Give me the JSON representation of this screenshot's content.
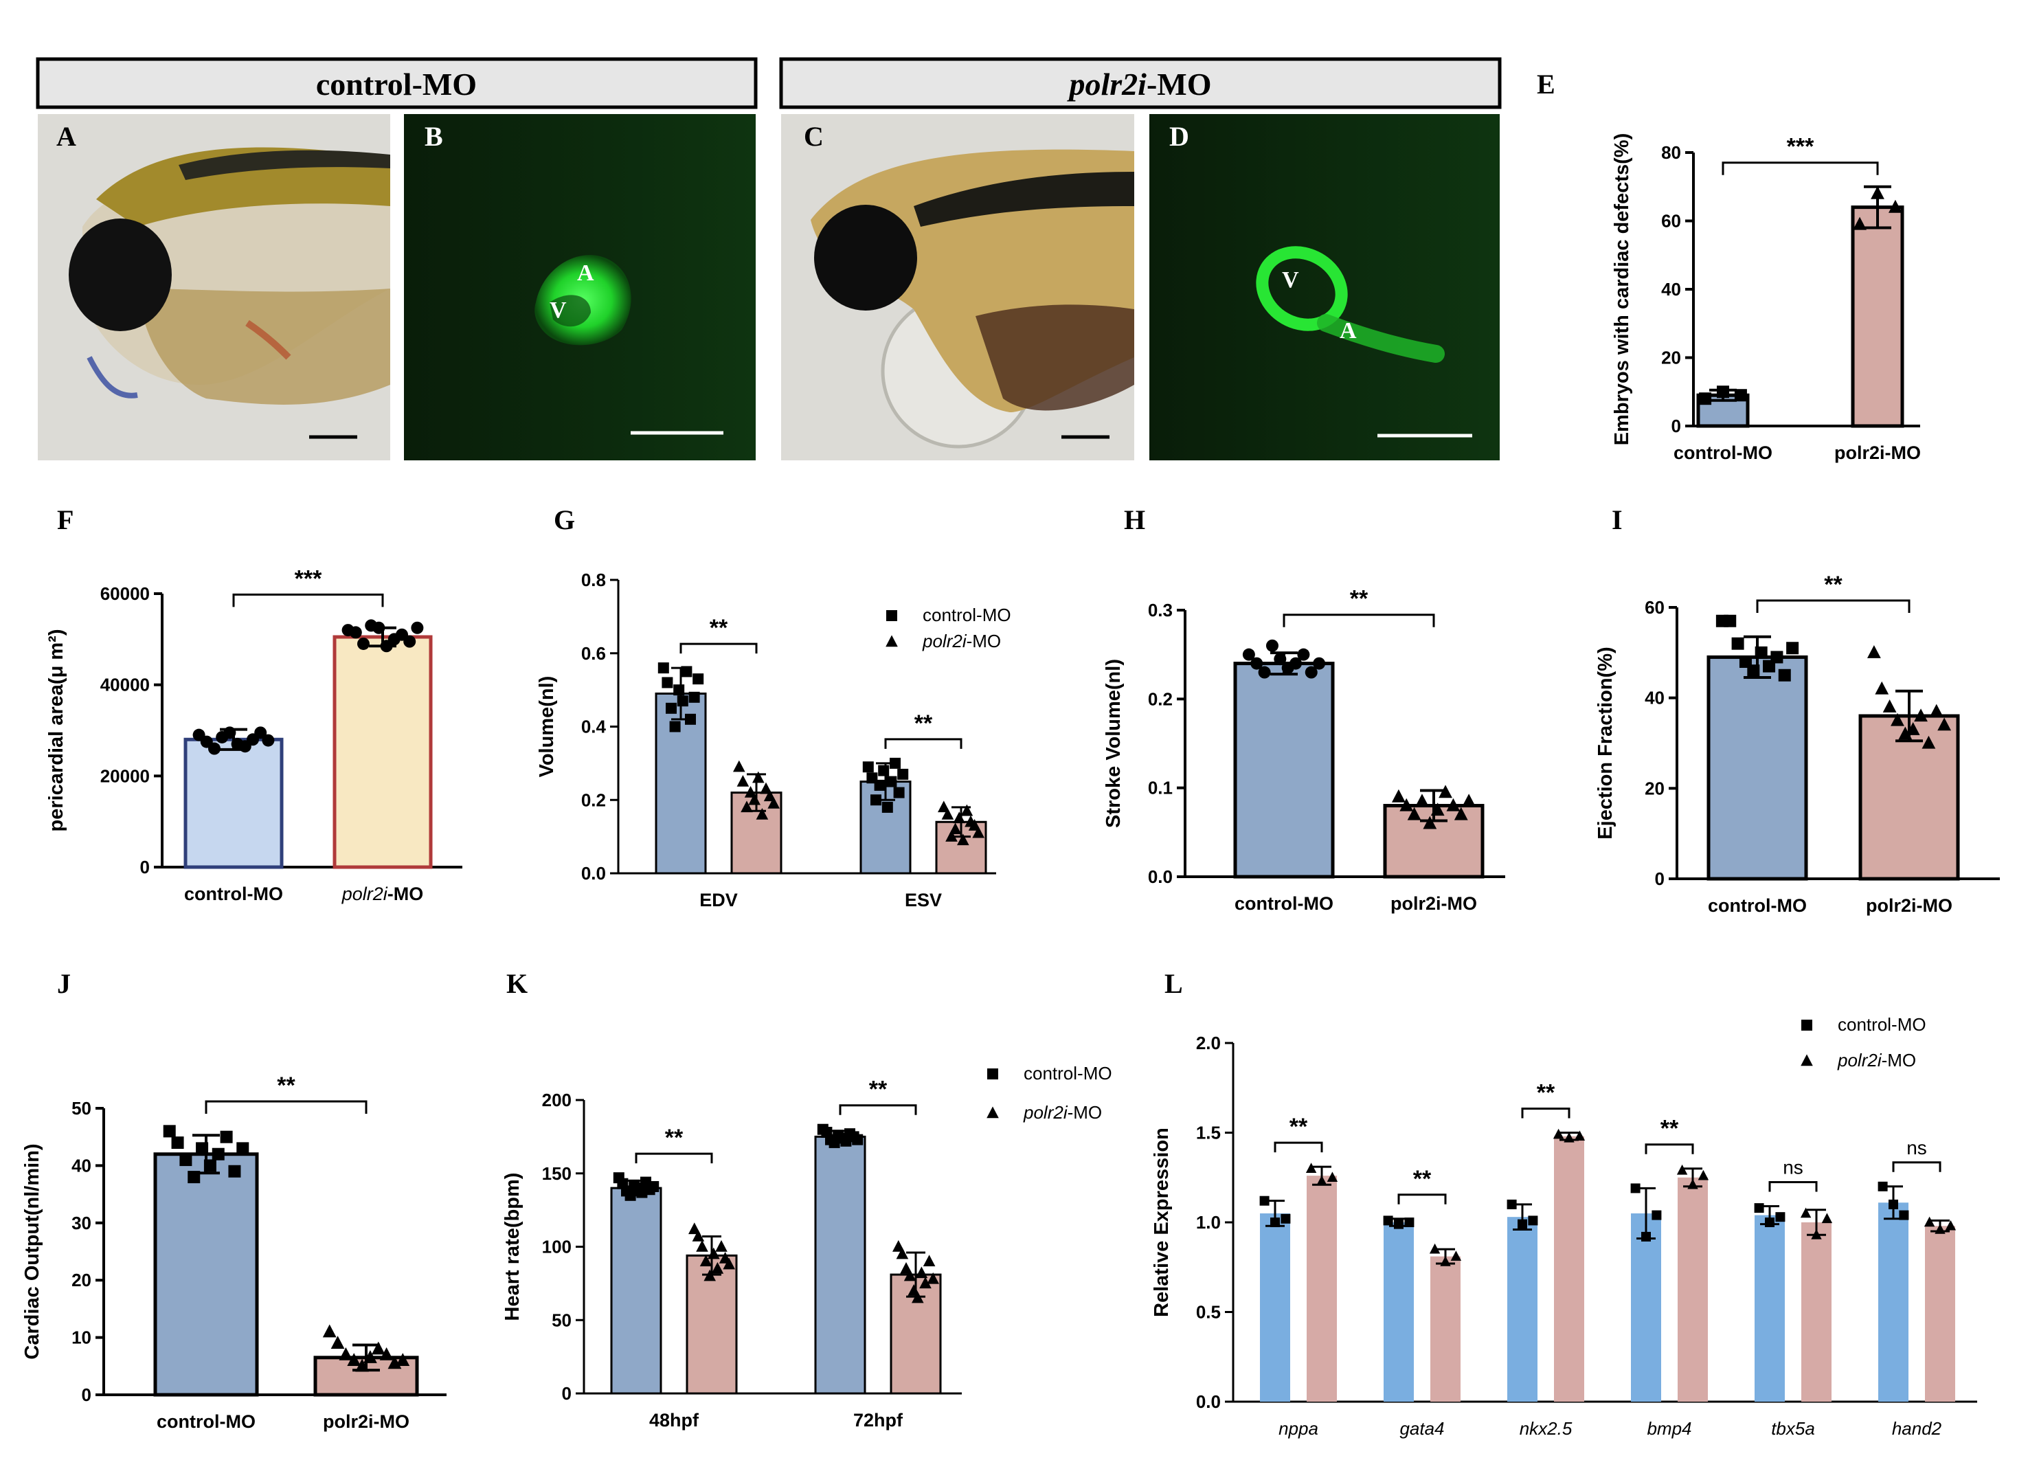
{
  "figure": {
    "headers": [
      "control-MO",
      "polr2i-MO"
    ],
    "header_italic_part": "polr2i",
    "header_plain_part": "-MO",
    "panel_letters": [
      "A",
      "B",
      "C",
      "D",
      "E",
      "F",
      "G",
      "H",
      "I",
      "J",
      "K",
      "L"
    ],
    "micrograph_labels": {
      "B": [
        "A",
        "V"
      ],
      "D": [
        "V",
        "A"
      ]
    },
    "colors": {
      "blue": "#8fa8c8",
      "pink": "#d4aaa4",
      "light_blue": "#c6d7ef",
      "light_yellow": "#f8e8c2",
      "navy_edge": "#2f3f7a",
      "red_edge": "#b03a3a",
      "L_blue": "#7aaee0",
      "L_pink": "#d6aaa6",
      "gfp": "#22e036",
      "micro_bg": "#0b220b",
      "bright_bg": "#dcdbd6"
    }
  },
  "chart_data": [
    {
      "panel": "E",
      "type": "bar",
      "ylabel": "Embryos with cardiac defects(%)",
      "ylim": [
        0,
        80
      ],
      "yticks": [
        0,
        20,
        40,
        60,
        80
      ],
      "categories": [
        "control-MO",
        "polr2i-MO"
      ],
      "values": [
        9,
        64
      ],
      "errors": [
        1.5,
        6
      ],
      "points": [
        [
          8,
          10,
          9
        ],
        [
          59,
          68,
          64
        ]
      ],
      "markers": [
        "square",
        "triangle"
      ],
      "significance": [
        {
          "from": 0,
          "to": 1,
          "label": "***"
        }
      ]
    },
    {
      "panel": "F",
      "type": "bar",
      "ylabel": "pericardial area(μ m²)",
      "ylim": [
        0,
        60000
      ],
      "yticks": [
        0,
        20000,
        40000,
        60000
      ],
      "categories": [
        "control-MO",
        "polr2i-MO"
      ],
      "category_italic": [
        "",
        "polr2i"
      ],
      "values": [
        28000,
        50500
      ],
      "errors": [
        2200,
        2000
      ],
      "points": [
        [
          29000,
          27500,
          26000,
          28500,
          29500,
          27000,
          26500,
          28000,
          29500,
          27800
        ],
        [
          52000,
          51500,
          49000,
          53000,
          52500,
          48500,
          50000,
          51000,
          49500,
          52500
        ]
      ],
      "markers": [
        "circle",
        "circle"
      ],
      "significance": [
        {
          "from": 0,
          "to": 1,
          "label": "***"
        }
      ]
    },
    {
      "panel": "G",
      "type": "bar",
      "ylabel": "Volume(nl)",
      "ylim": [
        0,
        0.8
      ],
      "yticks": [
        0.0,
        0.2,
        0.4,
        0.6,
        0.8
      ],
      "categories": [
        "EDV",
        "ESV"
      ],
      "legend": [
        "control-MO",
        "polr2i-MO"
      ],
      "series": [
        {
          "name": "control-MO",
          "values": [
            0.49,
            0.25
          ],
          "errors": [
            0.07,
            0.05
          ],
          "points": [
            [
              0.56,
              0.52,
              0.45,
              0.4,
              0.5,
              0.47,
              0.55,
              0.42,
              0.48,
              0.53
            ],
            [
              0.29,
              0.26,
              0.2,
              0.24,
              0.28,
              0.18,
              0.25,
              0.3,
              0.22,
              0.27
            ]
          ]
        },
        {
          "name": "polr2i-MO",
          "values": [
            0.22,
            0.14
          ],
          "errors": [
            0.05,
            0.04
          ],
          "points": [
            [
              0.29,
              0.25,
              0.18,
              0.22,
              0.2,
              0.26,
              0.16,
              0.23,
              0.21,
              0.19
            ],
            [
              0.18,
              0.16,
              0.1,
              0.12,
              0.15,
              0.09,
              0.17,
              0.14,
              0.13,
              0.11
            ]
          ]
        }
      ],
      "significance": [
        {
          "group": 0,
          "label": "**"
        },
        {
          "group": 1,
          "label": "**"
        }
      ]
    },
    {
      "panel": "H",
      "type": "bar",
      "ylabel": "Stroke Volume(nl)",
      "ylim": [
        0,
        0.3
      ],
      "yticks": [
        0.0,
        0.1,
        0.2,
        0.3
      ],
      "categories": [
        "control-MO",
        "polr2i-MO"
      ],
      "values": [
        0.24,
        0.08
      ],
      "errors": [
        0.012,
        0.017
      ],
      "points": [
        [
          0.25,
          0.24,
          0.23,
          0.26,
          0.245,
          0.235,
          0.24,
          0.25,
          0.23,
          0.24
        ],
        [
          0.09,
          0.08,
          0.07,
          0.085,
          0.06,
          0.075,
          0.095,
          0.08,
          0.07,
          0.085
        ]
      ],
      "markers": [
        "circle",
        "triangle"
      ],
      "significance": [
        {
          "from": 0,
          "to": 1,
          "label": "**"
        }
      ]
    },
    {
      "panel": "I",
      "type": "bar",
      "ylabel": "Ejection Fraction(%)",
      "ylim": [
        0,
        60
      ],
      "yticks": [
        0,
        20,
        40,
        60
      ],
      "categories": [
        "control-MO",
        "polr2i-MO"
      ],
      "values": [
        49,
        36
      ],
      "errors": [
        4.5,
        5.5
      ],
      "points": [
        [
          57,
          57,
          52,
          48,
          46,
          50,
          47,
          49,
          45,
          51
        ],
        [
          50,
          42,
          38,
          35,
          32,
          33,
          36,
          30,
          37,
          34
        ]
      ],
      "markers": [
        "square",
        "triangle"
      ],
      "significance": [
        {
          "from": 0,
          "to": 1,
          "label": "**"
        }
      ]
    },
    {
      "panel": "J",
      "type": "bar",
      "ylabel": "Cardiac Output(nl/min)",
      "ylim": [
        0,
        50
      ],
      "yticks": [
        0,
        10,
        20,
        30,
        40,
        50
      ],
      "categories": [
        "control-MO",
        "polr2i-MO"
      ],
      "values": [
        42,
        6.5
      ],
      "errors": [
        3.3,
        2.2
      ],
      "points": [
        [
          46,
          44,
          41,
          38,
          43,
          40,
          42,
          45,
          39,
          43
        ],
        [
          11,
          9,
          7,
          6,
          5,
          6.5,
          8,
          7,
          5.5,
          6
        ]
      ],
      "markers": [
        "square",
        "triangle"
      ],
      "significance": [
        {
          "from": 0,
          "to": 1,
          "label": "**"
        }
      ]
    },
    {
      "panel": "K",
      "type": "bar",
      "ylabel": "Heart rate(bpm)",
      "ylim": [
        0,
        200
      ],
      "yticks": [
        0,
        50,
        100,
        150,
        200
      ],
      "categories": [
        "48hpf",
        "72hpf"
      ],
      "legend": [
        "control-MO",
        "polr2i-MO"
      ],
      "series": [
        {
          "name": "control-MO",
          "values": [
            140,
            175
          ],
          "errors": [
            5,
            4
          ],
          "points": [
            [
              147,
              143,
              138,
              135,
              142,
              140,
              137,
              144,
              139,
              141
            ],
            [
              180,
              178,
              173,
              171,
              176,
              174,
              172,
              177,
              175,
              173
            ]
          ]
        },
        {
          "name": "polr2i-MO",
          "values": [
            94,
            81
          ],
          "errors": [
            13,
            15
          ],
          "points": [
            [
              112,
              107,
              100,
              90,
              80,
              95,
              85,
              100,
              92,
              88
            ],
            [
              100,
              95,
              85,
              80,
              70,
              65,
              82,
              75,
              90,
              78
            ]
          ]
        }
      ],
      "significance": [
        {
          "group": 0,
          "label": "**"
        },
        {
          "group": 1,
          "label": "**"
        }
      ]
    },
    {
      "panel": "L",
      "type": "bar",
      "ylabel": "Relative Expression",
      "ylim": [
        0,
        2.0
      ],
      "yticks": [
        0.0,
        0.5,
        1.0,
        1.5,
        2.0
      ],
      "categories": [
        "nppa",
        "gata4",
        "nkx2.5",
        "bmp4",
        "tbx5a",
        "hand2"
      ],
      "legend": [
        "control-MO",
        "polr2i-MO"
      ],
      "series": [
        {
          "name": "control-MO",
          "values": [
            1.05,
            1.0,
            1.03,
            1.05,
            1.04,
            1.11
          ],
          "errors": [
            0.07,
            0.02,
            0.07,
            0.14,
            0.05,
            0.09
          ],
          "points": [
            [
              1.12,
              1.0,
              1.02
            ],
            [
              1.01,
              0.99,
              1.0
            ],
            [
              1.1,
              0.99,
              1.01
            ],
            [
              1.19,
              0.92,
              1.04
            ],
            [
              1.08,
              1.0,
              1.03
            ],
            [
              1.2,
              1.1,
              1.04
            ]
          ]
        },
        {
          "name": "polr2i-MO",
          "values": [
            1.26,
            0.81,
            1.48,
            1.25,
            1.0,
            0.98
          ],
          "errors": [
            0.05,
            0.04,
            0.02,
            0.05,
            0.07,
            0.03
          ],
          "points": [
            [
              1.3,
              1.23,
              1.25
            ],
            [
              0.85,
              0.78,
              0.81
            ],
            [
              1.49,
              1.47,
              1.48
            ],
            [
              1.29,
              1.21,
              1.26
            ],
            [
              1.05,
              0.93,
              1.02
            ],
            [
              1.0,
              0.96,
              0.98
            ]
          ]
        }
      ],
      "significance": [
        {
          "group": 0,
          "label": "**"
        },
        {
          "group": 1,
          "label": "**"
        },
        {
          "group": 2,
          "label": "**"
        },
        {
          "group": 3,
          "label": "**"
        },
        {
          "group": 4,
          "label": "ns"
        },
        {
          "group": 5,
          "label": "ns"
        }
      ]
    }
  ]
}
